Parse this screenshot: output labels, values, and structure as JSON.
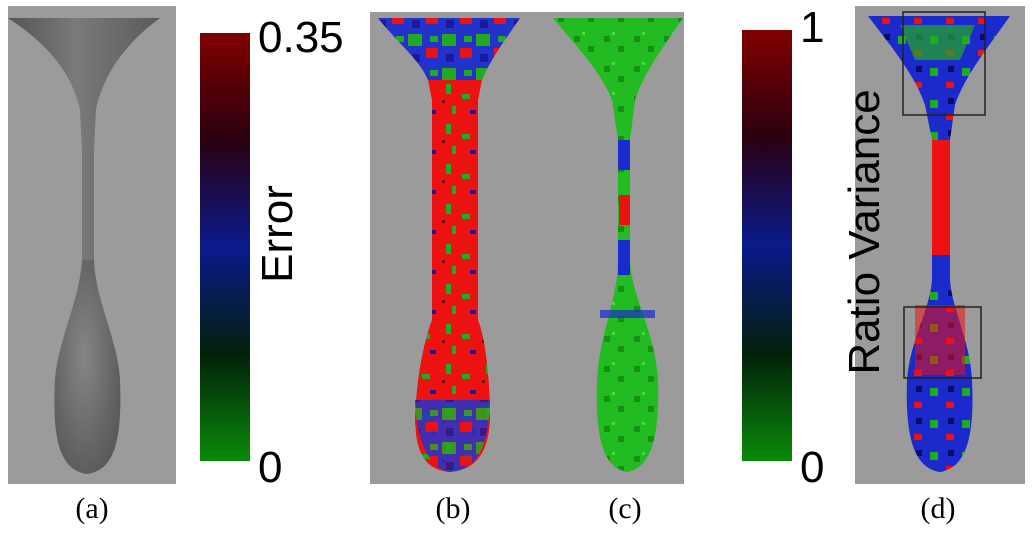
{
  "colorbar_error": {
    "label": "Error",
    "max": "0.35",
    "min": "0"
  },
  "colorbar_ratio": {
    "label": "Ratio Variance",
    "max": "1",
    "min": "0"
  },
  "captions": {
    "a": "(a)",
    "b": "(b)",
    "c": "(c)",
    "d": "(d)"
  },
  "colors": {
    "background": "#9b9b9b",
    "high": "#800000",
    "mid": "#0a1a8c",
    "low": "#0a8a0a",
    "shape_gray": "#6e6e6e",
    "error_red": "#ee1111",
    "ok_green": "#22bb22"
  }
}
